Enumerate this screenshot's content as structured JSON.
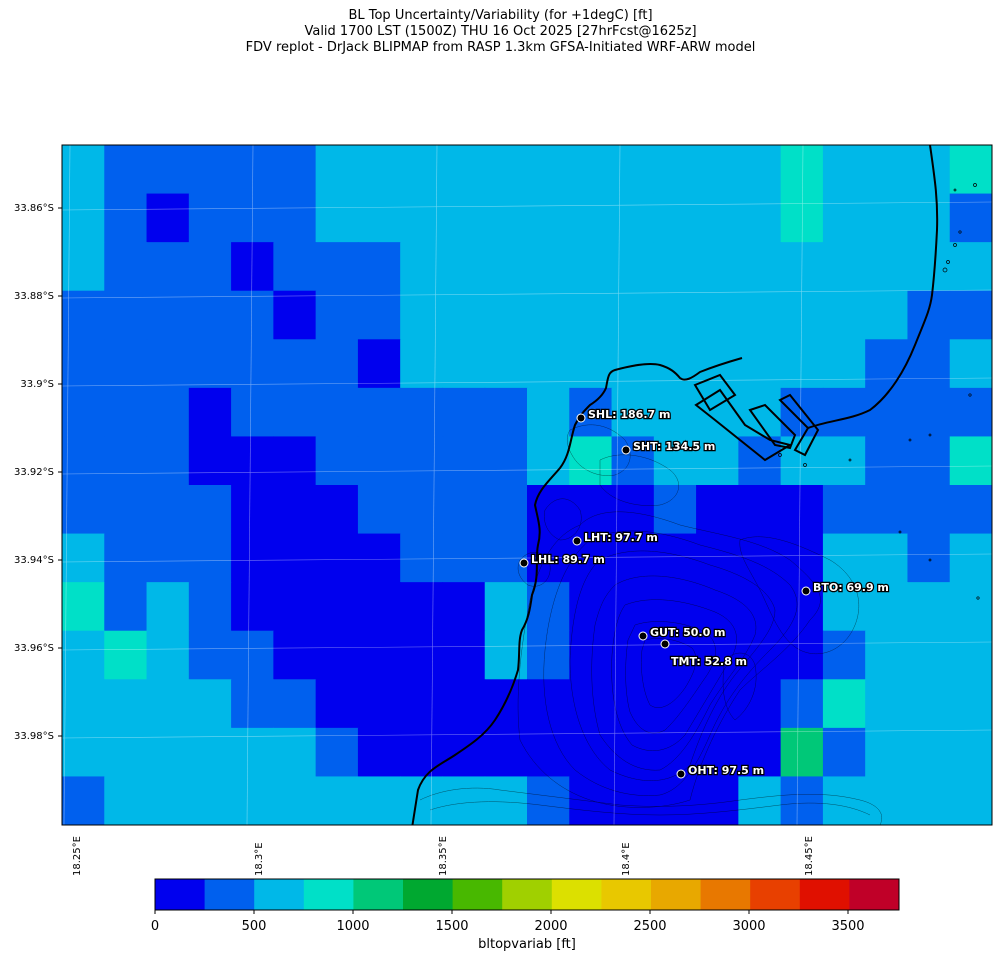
{
  "title": {
    "line1": "BL Top Uncertainty/Variability (for +1degC) [ft]",
    "line2": "Valid 1700 LST (1500Z) THU 16 Oct 2025 [27hrFcst@1625z]",
    "line3": "FDV replot - DrJack BLIPMAP from RASP 1.3km GFSA-Initiated WRF-ARW model"
  },
  "axes": {
    "lat_labels": [
      "33.86°S",
      "33.88°S",
      "33.9°S",
      "33.92°S",
      "33.94°S",
      "33.96°S",
      "33.98°S"
    ],
    "lon_labels": [
      "18.25°E",
      "18.3°E",
      "18.35°E",
      "18.4°E",
      "18.45°E"
    ]
  },
  "stations": [
    {
      "code": "SHL",
      "label": "SHL: 186.7 m"
    },
    {
      "code": "SHT",
      "label": "SHT: 134.5 m"
    },
    {
      "code": "LHT",
      "label": "LHT: 97.7 m"
    },
    {
      "code": "LHL",
      "label": "LHL: 89.7 m"
    },
    {
      "code": "BTO",
      "label": "BTO: 69.9 m"
    },
    {
      "code": "GUT",
      "label": "GUT: 50.0 m"
    },
    {
      "code": "TMT",
      "label": "TMT: 52.8 m"
    },
    {
      "code": "OHT",
      "label": "OHT: 97.5 m"
    }
  ],
  "colorbar": {
    "label": "bltopvariab [ft]",
    "ticks": [
      "0",
      "500",
      "1000",
      "1500",
      "2000",
      "2500",
      "3000",
      "3500"
    ],
    "colors": [
      "#0000ee",
      "#0060ee",
      "#00b8e8",
      "#00e0c8",
      "#00c878",
      "#00a830",
      "#48b800",
      "#a0d000",
      "#dce000",
      "#e8c800",
      "#e8a800",
      "#e87800",
      "#e84000",
      "#e01000",
      "#c00028"
    ]
  },
  "colors": {
    "dark_blue": "#0000ee",
    "medium_blue": "#0060ee",
    "light_blue": "#00b8e8",
    "teal": "#00e0c8",
    "green": "#00c878"
  }
}
